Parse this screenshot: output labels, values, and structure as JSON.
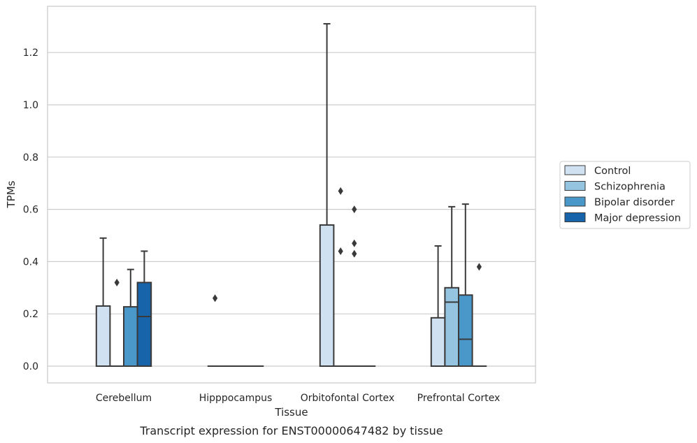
{
  "caption": "Transcript expression for ENST00000647482 by tissue",
  "chart_data": {
    "type": "box",
    "xlabel": "Tissue",
    "ylabel": "TPMs",
    "ylim": [
      -0.065,
      1.38
    ],
    "yticks": [
      0.0,
      0.2,
      0.4,
      0.6,
      0.8,
      1.0,
      1.2
    ],
    "ytick_labels": [
      "0.0",
      "0.2",
      "0.4",
      "0.6",
      "0.8",
      "1.0",
      "1.2"
    ],
    "grid": "horizontal",
    "legend_position": "right",
    "categories": [
      "Cerebellum",
      "Hipppocampus",
      "Orbitofontal Cortex",
      "Prefrontal Cortex"
    ],
    "series": [
      {
        "name": "Control",
        "color": "#d0e1f2",
        "boxes": [
          {
            "q1": 0.0,
            "median": 0.0,
            "q3": 0.23,
            "whislo": 0.0,
            "whishi": 0.49,
            "fliers": []
          },
          {
            "q1": 0.0,
            "median": 0.0,
            "q3": 0.0,
            "whislo": 0.0,
            "whishi": 0.0,
            "fliers": [
              0.26
            ]
          },
          {
            "q1": 0.0,
            "median": 0.0,
            "q3": 0.54,
            "whislo": 0.0,
            "whishi": 1.31,
            "fliers": []
          },
          {
            "q1": 0.0,
            "median": 0.0,
            "q3": 0.185,
            "whislo": 0.0,
            "whishi": 0.46,
            "fliers": []
          }
        ]
      },
      {
        "name": "Schizophrenia",
        "color": "#94c4df",
        "boxes": [
          {
            "q1": 0.0,
            "median": 0.0,
            "q3": 0.0,
            "whislo": 0.0,
            "whishi": 0.0,
            "fliers": [
              0.32
            ]
          },
          {
            "q1": 0.0,
            "median": 0.0,
            "q3": 0.0,
            "whislo": 0.0,
            "whishi": 0.0,
            "fliers": []
          },
          {
            "q1": 0.0,
            "median": 0.0,
            "q3": 0.0,
            "whislo": 0.0,
            "whishi": 0.0,
            "fliers": [
              0.67,
              0.44
            ]
          },
          {
            "q1": 0.0,
            "median": 0.245,
            "q3": 0.3,
            "whislo": 0.0,
            "whishi": 0.61,
            "fliers": []
          }
        ]
      },
      {
        "name": "Bipolar disorder",
        "color": "#4a98c9",
        "boxes": [
          {
            "q1": 0.0,
            "median": 0.0,
            "q3": 0.227,
            "whislo": 0.0,
            "whishi": 0.37,
            "fliers": []
          },
          {
            "q1": 0.0,
            "median": 0.0,
            "q3": 0.0,
            "whislo": 0.0,
            "whishi": 0.0,
            "fliers": []
          },
          {
            "q1": 0.0,
            "median": 0.0,
            "q3": 0.0,
            "whislo": 0.0,
            "whishi": 0.0,
            "fliers": [
              0.6,
              0.47,
              0.43
            ]
          },
          {
            "q1": 0.0,
            "median": 0.103,
            "q3": 0.272,
            "whislo": 0.0,
            "whishi": 0.62,
            "fliers": []
          }
        ]
      },
      {
        "name": "Major depression",
        "color": "#1764ab",
        "boxes": [
          {
            "q1": 0.0,
            "median": 0.19,
            "q3": 0.32,
            "whislo": 0.0,
            "whishi": 0.44,
            "fliers": []
          },
          {
            "q1": 0.0,
            "median": 0.0,
            "q3": 0.0,
            "whislo": 0.0,
            "whishi": 0.0,
            "fliers": []
          },
          {
            "q1": 0.0,
            "median": 0.0,
            "q3": 0.0,
            "whislo": 0.0,
            "whishi": 0.0,
            "fliers": []
          },
          {
            "q1": 0.0,
            "median": 0.0,
            "q3": 0.0,
            "whislo": 0.0,
            "whishi": 0.0,
            "fliers": [
              0.38
            ]
          }
        ]
      }
    ]
  }
}
